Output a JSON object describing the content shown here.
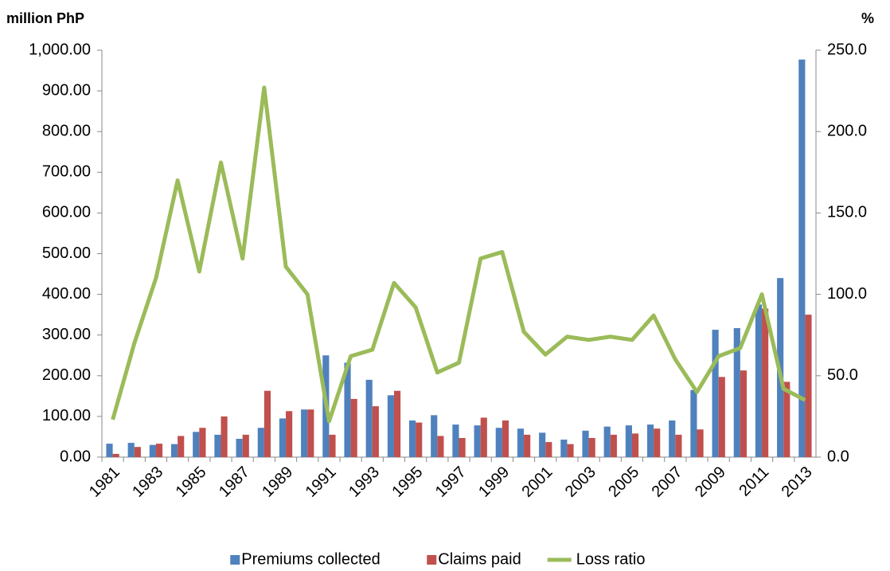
{
  "chart_data": {
    "type": "bar-line",
    "y_label": "million PhP",
    "y2_label": "%",
    "categories": [
      1981,
      null,
      1983,
      null,
      1985,
      null,
      1987,
      null,
      1989,
      null,
      1991,
      null,
      1993,
      null,
      1995,
      null,
      1997,
      null,
      1999,
      null,
      2001,
      null,
      2003,
      null,
      2005,
      null,
      2007,
      null,
      2009,
      null,
      2011,
      null,
      2013
    ],
    "series": [
      {
        "name": "Premiums collected",
        "color": "#4f81bd",
        "type": "bar",
        "values": [
          33,
          35,
          30,
          32,
          62,
          55,
          45,
          72,
          95,
          117,
          250,
          232,
          190,
          152,
          90,
          103,
          80,
          78,
          72,
          70,
          60,
          43,
          65,
          75,
          78,
          80,
          90,
          165,
          313,
          317,
          375,
          440,
          977
        ]
      },
      {
        "name": "Claims paid",
        "color": "#c0504d",
        "type": "bar",
        "values": [
          8,
          25,
          33,
          52,
          72,
          100,
          55,
          163,
          113,
          117,
          55,
          143,
          125,
          163,
          85,
          52,
          47,
          97,
          90,
          55,
          37,
          32,
          47,
          55,
          58,
          70,
          55,
          68,
          197,
          213,
          365,
          185,
          350
        ]
      },
      {
        "name": "Loss ratio",
        "color": "#9bbb59",
        "type": "line",
        "axis": "y2",
        "values": [
          23,
          70,
          110,
          170,
          114,
          181,
          122,
          227,
          117,
          100,
          22,
          62,
          66,
          107,
          92,
          52,
          58,
          122,
          126,
          77,
          63,
          74,
          72,
          74,
          72,
          87,
          60,
          40,
          62,
          67,
          100,
          42,
          35
        ]
      }
    ],
    "ylim": [
      0,
      1000
    ],
    "yticks": [
      {
        "value": 0,
        "label": "0.00"
      },
      {
        "value": 100,
        "label": "100.00"
      },
      {
        "value": 200,
        "label": "200.00"
      },
      {
        "value": 300,
        "label": "300.00"
      },
      {
        "value": 400,
        "label": "400.00"
      },
      {
        "value": 500,
        "label": "500.00"
      },
      {
        "value": 600,
        "label": "600.00"
      },
      {
        "value": 700,
        "label": "700.00"
      },
      {
        "value": 800,
        "label": "800.00"
      },
      {
        "value": 900,
        "label": "900.00"
      },
      {
        "value": 1000,
        "label": "1,000.00"
      }
    ],
    "y2lim": [
      0,
      250
    ],
    "y2ticks": [
      {
        "value": 0,
        "label": "0.0"
      },
      {
        "value": 50,
        "label": "50.0"
      },
      {
        "value": 100,
        "label": "100.0"
      },
      {
        "value": 150,
        "label": "150.0"
      },
      {
        "value": 200,
        "label": "200.0"
      },
      {
        "value": 250,
        "label": "250.0"
      }
    ],
    "legend": "bottom",
    "grid": false
  }
}
